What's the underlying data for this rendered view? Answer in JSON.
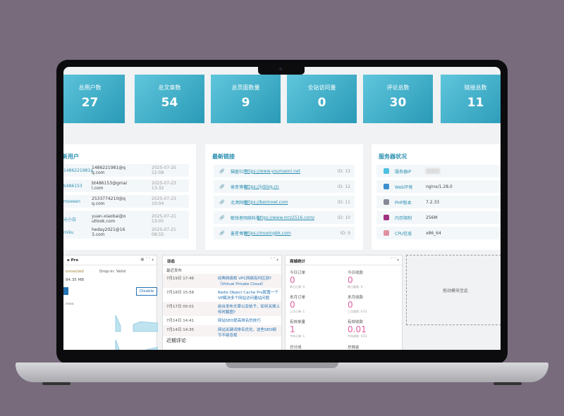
{
  "stats": [
    {
      "label": "总用户数",
      "value": "27"
    },
    {
      "label": "总文章数",
      "value": "54"
    },
    {
      "label": "总页面数量",
      "value": "9"
    },
    {
      "label": "全站访问量",
      "value": "0"
    },
    {
      "label": "评论总数",
      "value": "30"
    },
    {
      "label": "链接总数",
      "value": "11"
    }
  ],
  "users": {
    "title": "新用户",
    "rows": [
      {
        "name": "1486221981a",
        "email": "1486221981@qq.com",
        "date": "2025-07-25 12:08"
      },
      {
        "name": "b486153",
        "email": "bt486153@gmail.com",
        "date": "2025-07-23 13:32"
      },
      {
        "name": "moxeen",
        "email": "2533774210@qq.com",
        "date": "2025-07-23 10:04"
      },
      {
        "name": "元小白",
        "email": "yuan-xiaobai@outlook.com",
        "date": "2025-07-21 13:05"
      },
      {
        "name": "miku",
        "email": "heday2021@163.com",
        "date": "2025-07-21 08:55"
      }
    ]
  },
  "links": {
    "title": "最新链接",
    "rows": [
      {
        "name": "猫匿社区",
        "url": "https://www.youmaoni.net",
        "id": "ID: 13"
      },
      {
        "name": "倦意博客",
        "url": "https://jyblog.cn",
        "id": "ID: 12"
      },
      {
        "name": "北溟网络",
        "url": "https://beimowl.com",
        "id": "ID: 11"
      },
      {
        "name": "敏锐者网络科技",
        "url": "https://www.mrz2516.com/",
        "id": "ID: 10"
      },
      {
        "name": "墨星博客",
        "url": "https://moxingbk.com",
        "id": "ID: 9"
      }
    ]
  },
  "server": {
    "title": "服务器状况",
    "rows": [
      {
        "label": "服务器IP",
        "value": ""
      },
      {
        "label": "Web环境",
        "value": "nginx/1.28.0"
      },
      {
        "label": "PHP版本",
        "value": "7.2.33"
      },
      {
        "label": "内存限制",
        "value": "256M"
      },
      {
        "label": "CPU信息",
        "value": "x86_64"
      }
    ]
  },
  "redis": {
    "title": "e Pro",
    "status": "onnected",
    "dropin": "Drop-in: Valid",
    "memory": "84.35 MB",
    "disable": "Disable",
    "chart_label": "mes"
  },
  "activity": {
    "title": "动态",
    "section": "最近发布",
    "section2": "近期评论",
    "rows": [
      {
        "date": "7月19日 17:46",
        "title": "经典网络和 VPC网络有何区别?（Virtual Private Cloud）"
      },
      {
        "date": "7月18日 15:58",
        "title": "Redis Object Cache Pro配置一个VP解决多个网站访问量站问题"
      },
      {
        "date": "7月17日 00:01",
        "title": "前台发布文章以及帖子，如何关掉上传时截图?"
      },
      {
        "date": "7月14日 14:41",
        "title": "网站SEO提高排名的技巧"
      },
      {
        "date": "7月14日 14:35",
        "title": "网站关键词排名优化，这些SEO细节不容忽视"
      }
    ]
  },
  "shop": {
    "title": "商城统计",
    "items": [
      {
        "label": "今日订单",
        "value": "0",
        "sub": "昨日订单: 0"
      },
      {
        "label": "今日收款",
        "value": "0",
        "sub": "昨日收款: 0"
      },
      {
        "label": "本月订单",
        "value": "0",
        "sub": "上月订单: 1"
      },
      {
        "label": "本月收款",
        "value": "0",
        "sub": "上月收款: 0.01"
      },
      {
        "label": "有效单量",
        "value": "1",
        "sub": "今年订单: 1"
      },
      {
        "label": "有效收款",
        "value": "0.01",
        "sub": "今年收款: 0.01"
      }
    ],
    "more": [
      "总分成",
      "总佣金"
    ]
  },
  "dropzone": "拖动模块至此",
  "colors": {
    "card": "#3fb0cb",
    "accent": "#2a8fb0",
    "pink": "#e060a0"
  }
}
